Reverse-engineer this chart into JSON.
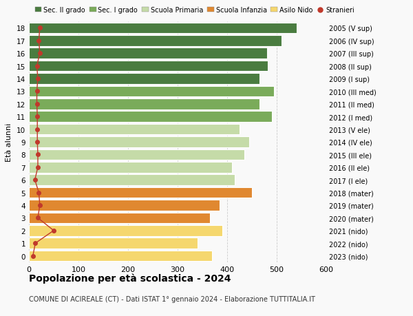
{
  "ages": [
    0,
    1,
    2,
    3,
    4,
    5,
    6,
    7,
    8,
    9,
    10,
    11,
    12,
    13,
    14,
    15,
    16,
    17,
    18
  ],
  "bar_values": [
    370,
    340,
    390,
    365,
    385,
    450,
    415,
    410,
    435,
    445,
    425,
    490,
    465,
    495,
    465,
    482,
    480,
    510,
    540
  ],
  "bar_colors": [
    "#f5d76e",
    "#f5d76e",
    "#f5d76e",
    "#e08830",
    "#e08830",
    "#e08830",
    "#c5dba8",
    "#c5dba8",
    "#c5dba8",
    "#c5dba8",
    "#c5dba8",
    "#7aab5a",
    "#7aab5a",
    "#7aab5a",
    "#4a7c40",
    "#4a7c40",
    "#4a7c40",
    "#4a7c40",
    "#4a7c40"
  ],
  "stranieri_values": [
    8,
    13,
    50,
    18,
    22,
    20,
    12,
    18,
    18,
    17,
    17,
    17,
    16,
    16,
    18,
    16,
    22,
    20,
    22
  ],
  "right_labels": [
    "2023 (nido)",
    "2022 (nido)",
    "2021 (nido)",
    "2020 (mater)",
    "2019 (mater)",
    "2018 (mater)",
    "2017 (I ele)",
    "2016 (II ele)",
    "2015 (III ele)",
    "2014 (IV ele)",
    "2013 (V ele)",
    "2012 (I med)",
    "2011 (II med)",
    "2010 (III med)",
    "2009 (I sup)",
    "2008 (II sup)",
    "2007 (III sup)",
    "2006 (IV sup)",
    "2005 (V sup)"
  ],
  "legend_labels": [
    "Sec. II grado",
    "Sec. I grado",
    "Scuola Primaria",
    "Scuola Infanzia",
    "Asilo Nido",
    "Stranieri"
  ],
  "legend_colors": [
    "#4a7c40",
    "#7aab5a",
    "#c5dba8",
    "#e08830",
    "#f5d76e",
    "#c0392b"
  ],
  "ylabel": "Età alunni",
  "title": "Popolazione per età scolastica - 2024",
  "subtitle": "COMUNE DI ACIREALE (CT) - Dati ISTAT 1° gennaio 2024 - Elaborazione TUTTITALIA.IT",
  "xlim": [
    0,
    600
  ],
  "xticks": [
    0,
    100,
    200,
    300,
    400,
    500,
    600
  ],
  "bg_color": "#f9f9f9",
  "bar_edge_color": "white",
  "grid_color": "#cccccc",
  "stranieri_color": "#c0392b"
}
